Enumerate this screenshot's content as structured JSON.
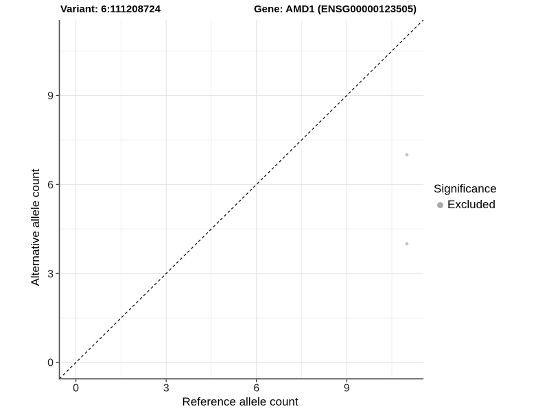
{
  "titles": {
    "variant": "Variant: 6:111208724",
    "gene": "Gene: AMD1 (ENSG00000123505)"
  },
  "legend": {
    "title": "Significance",
    "items": [
      {
        "label": "Excluded",
        "color": "#a9a9a9"
      }
    ]
  },
  "chart_data": {
    "type": "scatter",
    "title": "Variant: 6:111208724  /  Gene: AMD1 (ENSG00000123505)",
    "xlabel": "Reference allele count",
    "ylabel": "Alternative allele count",
    "xlim": [
      -0.55,
      11.55
    ],
    "ylim": [
      -0.55,
      11.55
    ],
    "x_ticks": [
      0,
      3,
      6,
      9
    ],
    "y_ticks": [
      0,
      3,
      6,
      9
    ],
    "x_minor_ticks": [
      1.5,
      4.5,
      7.5,
      10.5
    ],
    "y_minor_ticks": [
      1.5,
      4.5,
      7.5,
      10.5
    ],
    "grid": true,
    "legend_position": "right",
    "series": [
      {
        "name": "Excluded",
        "color": "#c2c2c2",
        "points": [
          [
            11,
            7
          ],
          [
            11,
            4
          ]
        ]
      }
    ],
    "reference_line": {
      "kind": "identity",
      "style": "dashed",
      "color": "#000000"
    }
  },
  "style": {
    "grid_major_color": "#e2e2e2",
    "grid_minor_color": "#efefef",
    "axis_line_color": "#4d4d4d",
    "tick_color": "#333333"
  }
}
